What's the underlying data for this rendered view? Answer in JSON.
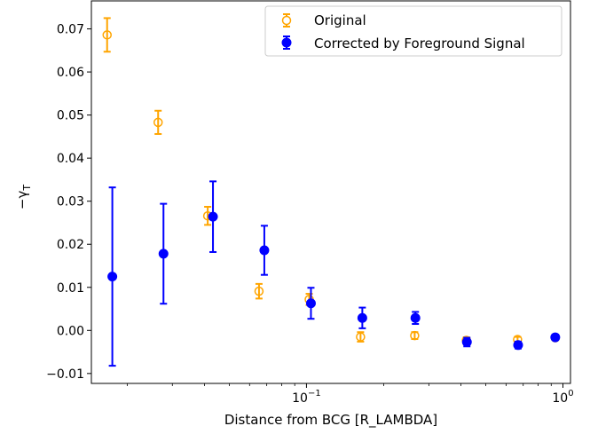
{
  "chart_data": {
    "type": "scatter",
    "title": "",
    "xlabel": "Distance from BCG [R_LAMBDA]",
    "ylabel": "−γ",
    "ylabel_subscript": "T",
    "xscale": "log",
    "xlim": [
      0.0145,
      1.07
    ],
    "ylim": [
      -0.0123,
      0.0765
    ],
    "grid": false,
    "legend_position": "top-right",
    "x_ticks": [
      {
        "value": 0.1,
        "base": "10",
        "exp": "−1"
      },
      {
        "value": 1.0,
        "base": "10",
        "exp": "0"
      }
    ],
    "y_ticks": [
      {
        "value": -0.01,
        "label": "−0.01"
      },
      {
        "value": 0.0,
        "label": "0.00"
      },
      {
        "value": 0.01,
        "label": "0.01"
      },
      {
        "value": 0.02,
        "label": "0.02"
      },
      {
        "value": 0.03,
        "label": "0.03"
      },
      {
        "value": 0.04,
        "label": "0.04"
      },
      {
        "value": 0.05,
        "label": "0.05"
      },
      {
        "value": 0.06,
        "label": "0.06"
      },
      {
        "value": 0.07,
        "label": "0.07"
      }
    ],
    "series": [
      {
        "name": "Original",
        "color": "#FFA500",
        "marker": "open-circle",
        "points": [
          {
            "x": 0.0167,
            "y": 0.0686,
            "err": 0.0039
          },
          {
            "x": 0.0264,
            "y": 0.0483,
            "err": 0.0027
          },
          {
            "x": 0.0412,
            "y": 0.0266,
            "err": 0.0021
          },
          {
            "x": 0.0653,
            "y": 0.0091,
            "err": 0.0017
          },
          {
            "x": 0.1025,
            "y": 0.0072,
            "err": 0.0013
          },
          {
            "x": 0.1625,
            "y": -0.0015,
            "err": 0.0011
          },
          {
            "x": 0.2642,
            "y": -0.0012,
            "err": 0.0008
          },
          {
            "x": 0.4202,
            "y": -0.0023,
            "err": 0.0007
          },
          {
            "x": 0.6654,
            "y": -0.0021,
            "err": 0.0006
          },
          {
            "x": 0.9333,
            "y": -0.0017,
            "err": 0.0005
          }
        ]
      },
      {
        "name": "Corrected by Foreground Signal",
        "color": "#0000FF",
        "marker": "filled-circle",
        "points": [
          {
            "x": 0.0175,
            "y": 0.0125,
            "err": 0.0207
          },
          {
            "x": 0.0277,
            "y": 0.0178,
            "err": 0.0116
          },
          {
            "x": 0.0432,
            "y": 0.0264,
            "err": 0.0082
          },
          {
            "x": 0.0685,
            "y": 0.0186,
            "err": 0.0057
          },
          {
            "x": 0.1041,
            "y": 0.0063,
            "err": 0.0036
          },
          {
            "x": 0.1651,
            "y": 0.0029,
            "err": 0.0024
          },
          {
            "x": 0.2659,
            "y": 0.0029,
            "err": 0.0014
          },
          {
            "x": 0.4222,
            "y": -0.0027,
            "err": 0.001
          },
          {
            "x": 0.6687,
            "y": -0.0034,
            "err": 0.0008
          },
          {
            "x": 0.9333,
            "y": -0.0016,
            "err": 0.0006
          }
        ]
      }
    ]
  }
}
